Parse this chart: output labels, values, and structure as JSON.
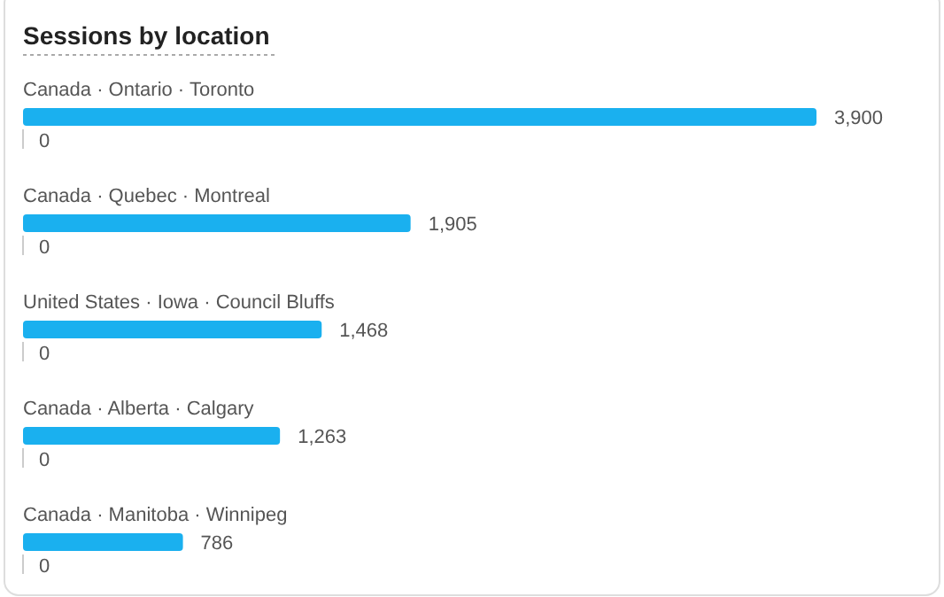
{
  "chart_data": {
    "type": "bar",
    "orientation": "horizontal",
    "title": "Sessions by location",
    "categories": [
      "Canada · Ontario · Toronto",
      "Canada · Quebec · Montreal",
      "United States · Iowa · Council Bluffs",
      "Canada · Alberta · Calgary",
      "Canada · Manitoba · Winnipeg"
    ],
    "values": [
      3900,
      1905,
      1468,
      1263,
      786
    ],
    "value_labels": [
      "3,900",
      "1,905",
      "1,468",
      "1,263",
      "786"
    ],
    "color": "#1ab0ef",
    "annotations": [
      "0",
      "0",
      "0",
      "0",
      "0"
    ]
  }
}
